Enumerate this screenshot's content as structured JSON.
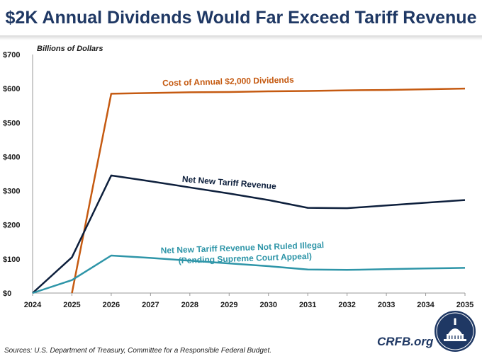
{
  "title": "$2K Annual Dividends Would Far Exceed Tariff Revenue",
  "source": "Sources: U.S. Department of Treasury, Committee for a Responsible Federal Budget.",
  "brand": "CRFB.org",
  "chart_data": {
    "type": "line",
    "title": "$2K Annual Dividends Would Far Exceed Tariff Revenue",
    "unit_label": "Billions of Dollars",
    "xlabel": "",
    "ylabel": "Billions of Dollars",
    "x": [
      2024,
      2025,
      2026,
      2027,
      2028,
      2029,
      2030,
      2031,
      2032,
      2033,
      2034,
      2035
    ],
    "x_tick_labels": [
      "2024",
      "2025",
      "2026",
      "2027",
      "2028",
      "2029",
      "2030",
      "2031",
      "2032",
      "2033",
      "2034",
      "2035"
    ],
    "ylim": [
      0,
      700
    ],
    "y_ticks": [
      0,
      100,
      200,
      300,
      400,
      500,
      600,
      700
    ],
    "y_tick_labels": [
      "$0",
      "$100",
      "$200",
      "$300",
      "$400",
      "$500",
      "$600",
      "$700"
    ],
    "grid": false,
    "series": [
      {
        "key": "dividends",
        "name": "Cost of Annual $2,000 Dividends",
        "color": "#c55a11",
        "points": [
          [
            2025,
            0
          ],
          [
            2026,
            585
          ],
          [
            2027,
            587
          ],
          [
            2028,
            589
          ],
          [
            2029,
            590
          ],
          [
            2030,
            592
          ],
          [
            2031,
            593
          ],
          [
            2032,
            595
          ],
          [
            2033,
            596
          ],
          [
            2034,
            598
          ],
          [
            2035,
            600
          ]
        ]
      },
      {
        "key": "tariff",
        "name": "Net New Tariff Revenue",
        "color": "#0d1f3c",
        "points": [
          [
            2024,
            0
          ],
          [
            2025,
            105
          ],
          [
            2026,
            345
          ],
          [
            2027,
            328
          ],
          [
            2028,
            310
          ],
          [
            2029,
            292
          ],
          [
            2030,
            273
          ],
          [
            2031,
            250
          ],
          [
            2032,
            249
          ],
          [
            2033,
            257
          ],
          [
            2034,
            265
          ],
          [
            2035,
            273
          ]
        ]
      },
      {
        "key": "not_illegal",
        "name": "Net New Tariff Revenue Not Ruled Illegal",
        "name_line2": "(Pending Supreme Court Appeal)",
        "color": "#2e95a8",
        "points": [
          [
            2024,
            0
          ],
          [
            2025,
            38
          ],
          [
            2026,
            110
          ],
          [
            2027,
            103
          ],
          [
            2028,
            95
          ],
          [
            2029,
            87
          ],
          [
            2030,
            79
          ],
          [
            2031,
            69
          ],
          [
            2032,
            68
          ],
          [
            2033,
            70
          ],
          [
            2034,
            72
          ],
          [
            2035,
            74
          ]
        ]
      }
    ]
  }
}
